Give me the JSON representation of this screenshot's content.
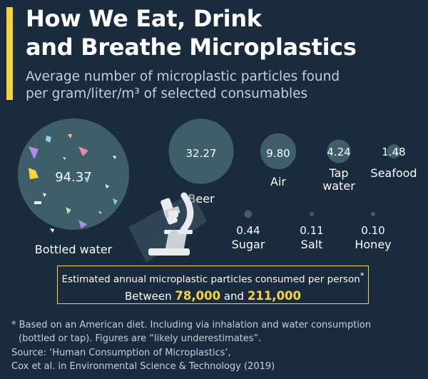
{
  "header": {
    "title_line1": "How We Eat, Drink",
    "title_line2": "and Breathe Microplastics",
    "subtitle_line1": "Average number of microplastic particles found",
    "subtitle_line2": "per gram/liter/m³ of selected consumables"
  },
  "chart_data": {
    "type": "bubble",
    "title": "How We Eat, Drink and Breathe Microplastics",
    "subtitle": "Average number of microplastic particles found per gram/liter/m³ of selected consumables",
    "categories": [
      "Bottled water",
      "Beer",
      "Air",
      "Tap water",
      "Seafood",
      "Sugar",
      "Salt",
      "Honey"
    ],
    "values": [
      94.37,
      32.27,
      9.8,
      4.24,
      1.48,
      0.44,
      0.11,
      0.1
    ],
    "value_labels": [
      "94.37",
      "32.27",
      "9.80",
      "4.24",
      "1.48",
      "0.44",
      "0.11",
      "0.10"
    ],
    "label_lines": [
      [
        "Bottled water"
      ],
      [
        "Beer"
      ],
      [
        "Air"
      ],
      [
        "Tap",
        "water"
      ],
      [
        "Seafood"
      ],
      [
        "Sugar"
      ],
      [
        "Salt"
      ],
      [
        "Honey"
      ]
    ]
  },
  "summary": {
    "line1": "Estimated annual microplastic particles consumed per person",
    "asterisk": "*",
    "between": "Between",
    "low": "78,000",
    "and": "and",
    "high": "211,000"
  },
  "footnote": {
    "line1": "* Based on an American diet. Including via inhalation and water consumption",
    "line2": "(bottled or tap). Figures are “likely underestimates”."
  },
  "source": {
    "line1": "Source: ‘Human Consumption of Microplastics’,",
    "line2": "Cox et al. in Environmental Science & Technology (2019)"
  },
  "colors": {
    "background": "#1b2b3e",
    "bubble": "#3e5f6a",
    "accent": "#f5d53c",
    "text": "#ffffff"
  }
}
